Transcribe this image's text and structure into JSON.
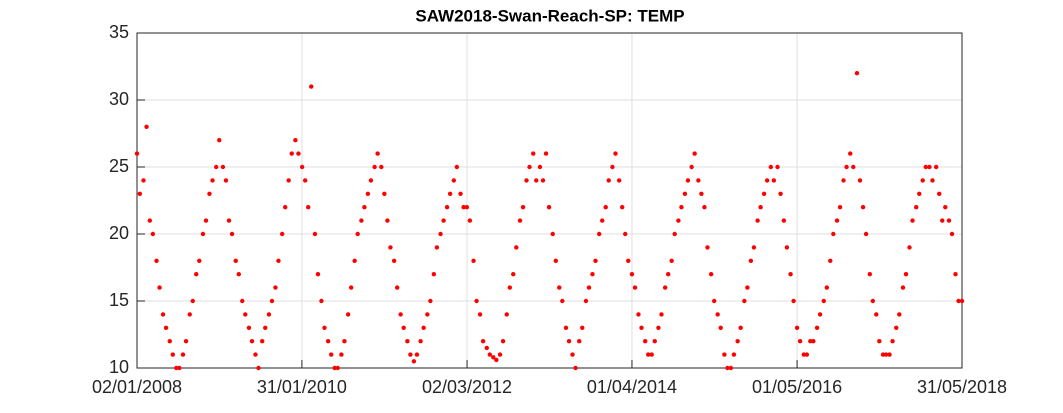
{
  "chart_data": {
    "type": "scatter",
    "title": "SAW2018-Swan-Reach-SP: TEMP",
    "series": [
      {
        "color": "#ff0000",
        "x": [
          "02/01/2008",
          "15/01/2008",
          "01/02/2008",
          "15/02/2008",
          "01/03/2008",
          "15/03/2008",
          "01/04/2008",
          "15/04/2008",
          "01/05/2008",
          "15/05/2008",
          "01/06/2008",
          "15/06/2008",
          "01/07/2008",
          "15/07/2008",
          "01/08/2008",
          "15/08/2008",
          "01/09/2008",
          "15/09/2008",
          "01/10/2008",
          "15/10/2008",
          "01/11/2008",
          "15/11/2008",
          "01/12/2008",
          "15/12/2008",
          "01/01/2009",
          "15/01/2009",
          "01/02/2009",
          "15/02/2009",
          "01/03/2009",
          "15/03/2009",
          "01/04/2009",
          "15/04/2009",
          "01/05/2009",
          "15/05/2009",
          "01/06/2009",
          "15/06/2009",
          "01/07/2009",
          "15/07/2009",
          "01/08/2009",
          "15/08/2009",
          "01/09/2009",
          "15/09/2009",
          "01/10/2009",
          "15/10/2009",
          "01/11/2009",
          "15/11/2009",
          "01/12/2009",
          "15/12/2009",
          "01/01/2010",
          "15/01/2010",
          "01/02/2010",
          "15/02/2010",
          "01/03/2010",
          "15/03/2010",
          "01/04/2010",
          "15/04/2010",
          "01/05/2010",
          "15/05/2010",
          "01/06/2010",
          "15/06/2010",
          "01/07/2010",
          "15/07/2010",
          "01/08/2010",
          "15/08/2010",
          "01/09/2010",
          "15/09/2010",
          "01/10/2010",
          "15/10/2010",
          "01/11/2010",
          "15/11/2010",
          "01/12/2010",
          "15/12/2010",
          "01/01/2011",
          "15/01/2011",
          "01/02/2011",
          "15/02/2011",
          "01/03/2011",
          "15/03/2011",
          "01/04/2011",
          "15/04/2011",
          "01/05/2011",
          "15/05/2011",
          "01/06/2011",
          "15/06/2011",
          "01/07/2011",
          "15/07/2011",
          "01/08/2011",
          "15/08/2011",
          "01/09/2011",
          "15/09/2011",
          "01/10/2011",
          "15/10/2011",
          "01/11/2011",
          "15/11/2011",
          "01/12/2011",
          "15/12/2011",
          "01/01/2012",
          "15/01/2012",
          "01/02/2012",
          "15/02/2012",
          "01/03/2012",
          "15/03/2012",
          "01/04/2012",
          "15/04/2012",
          "01/05/2012",
          "15/05/2012",
          "01/06/2012",
          "15/06/2012",
          "01/07/2012",
          "15/07/2012",
          "01/08/2012",
          "15/08/2012",
          "01/09/2012",
          "15/09/2012",
          "01/10/2012",
          "15/10/2012",
          "01/11/2012",
          "15/11/2012",
          "01/12/2012",
          "15/12/2012",
          "01/01/2013",
          "15/01/2013",
          "01/02/2013",
          "15/02/2013",
          "01/03/2013",
          "15/03/2013",
          "01/04/2013",
          "15/04/2013",
          "01/05/2013",
          "15/05/2013",
          "01/06/2013",
          "15/06/2013",
          "01/07/2013",
          "15/07/2013",
          "01/08/2013",
          "15/08/2013",
          "01/09/2013",
          "15/09/2013",
          "01/10/2013",
          "15/10/2013",
          "01/11/2013",
          "15/11/2013",
          "01/12/2013",
          "15/12/2013",
          "01/01/2014",
          "15/01/2014",
          "01/02/2014",
          "15/02/2014",
          "01/03/2014",
          "15/03/2014",
          "01/04/2014",
          "15/04/2014",
          "01/05/2014",
          "15/05/2014",
          "01/06/2014",
          "15/06/2014",
          "01/07/2014",
          "15/07/2014",
          "01/08/2014",
          "15/08/2014",
          "01/09/2014",
          "15/09/2014",
          "01/10/2014",
          "15/10/2014",
          "01/11/2014",
          "15/11/2014",
          "01/12/2014",
          "15/12/2014",
          "01/01/2015",
          "15/01/2015",
          "01/02/2015",
          "15/02/2015",
          "01/03/2015",
          "15/03/2015",
          "01/04/2015",
          "15/04/2015",
          "01/05/2015",
          "15/05/2015",
          "01/06/2015",
          "15/06/2015",
          "01/07/2015",
          "15/07/2015",
          "01/08/2015",
          "15/08/2015",
          "01/09/2015",
          "15/09/2015",
          "01/10/2015",
          "15/10/2015",
          "01/11/2015",
          "15/11/2015",
          "01/12/2015",
          "15/12/2015",
          "01/01/2016",
          "15/01/2016",
          "01/02/2016",
          "15/02/2016",
          "01/03/2016",
          "15/03/2016",
          "01/04/2016",
          "15/04/2016",
          "01/05/2016",
          "15/05/2016",
          "01/06/2016",
          "15/06/2016",
          "01/07/2016",
          "15/07/2016",
          "01/08/2016",
          "15/08/2016",
          "01/09/2016",
          "15/09/2016",
          "01/10/2016",
          "15/10/2016",
          "01/11/2016",
          "15/11/2016",
          "01/12/2016",
          "15/12/2016",
          "01/01/2017",
          "15/01/2017",
          "01/02/2017",
          "15/02/2017",
          "01/03/2017",
          "15/03/2017",
          "01/04/2017",
          "15/04/2017",
          "01/05/2017",
          "15/05/2017",
          "01/06/2017",
          "15/06/2017",
          "01/07/2017",
          "15/07/2017",
          "01/08/2017",
          "15/08/2017",
          "01/09/2017",
          "15/09/2017",
          "01/10/2017",
          "15/10/2017",
          "01/11/2017",
          "15/11/2017",
          "01/12/2017",
          "15/12/2017",
          "01/01/2018",
          "15/01/2018",
          "01/02/2018",
          "15/02/2018",
          "01/03/2018",
          "15/03/2018",
          "01/04/2018",
          "15/04/2018",
          "01/05/2018",
          "15/05/2018",
          "31/05/2018"
        ],
        "values": [
          26,
          23,
          24,
          28,
          21,
          20,
          18,
          16,
          14,
          13,
          12,
          11,
          10,
          10,
          11,
          12,
          14,
          15,
          17,
          18,
          20,
          21,
          23,
          24,
          25,
          27,
          25,
          24,
          21,
          20,
          18,
          17,
          15,
          14,
          13,
          12,
          11,
          10,
          12,
          13,
          14,
          15,
          16,
          18,
          20,
          22,
          24,
          26,
          27,
          26,
          25,
          24,
          22,
          31,
          20,
          17,
          15,
          13,
          12,
          11,
          10,
          10,
          11,
          12,
          14,
          16,
          18,
          20,
          21,
          22,
          23,
          24,
          25,
          26,
          25,
          23,
          21,
          19,
          18,
          16,
          14,
          13,
          12,
          11,
          10.5,
          11,
          12,
          13,
          14,
          15,
          17,
          19,
          20,
          21,
          22,
          23,
          24,
          25,
          23,
          22,
          22,
          21,
          18,
          15,
          14,
          12,
          11.5,
          11,
          10.8,
          10.6,
          11,
          12,
          14,
          16,
          17,
          19,
          21,
          22,
          24,
          25,
          26,
          24,
          25,
          24,
          26,
          22,
          20,
          18,
          16,
          15,
          13,
          12,
          11,
          10,
          12,
          13,
          15,
          16,
          17,
          18,
          20,
          21,
          22,
          24,
          25,
          26,
          24,
          22,
          20,
          18,
          17,
          16,
          14,
          13,
          12,
          11,
          11,
          12,
          13,
          14,
          16,
          17,
          18,
          20,
          21,
          22,
          23,
          24,
          25,
          26,
          24,
          23,
          22,
          19,
          17,
          15,
          14,
          13,
          11,
          10,
          10,
          11,
          12,
          13,
          15,
          16,
          18,
          19,
          21,
          22,
          23,
          24,
          25,
          24,
          25,
          23,
          21,
          19,
          17,
          15,
          13,
          12,
          11,
          11,
          12,
          12,
          13,
          14,
          15,
          16,
          18,
          20,
          21,
          22,
          24,
          25,
          26,
          25,
          32,
          24,
          22,
          20,
          17,
          15,
          14,
          12,
          11,
          11,
          11,
          12,
          13,
          14,
          16,
          17,
          19,
          21,
          22,
          23,
          24,
          25,
          25,
          24,
          25,
          23,
          21,
          22,
          21,
          20,
          17,
          15,
          15
        ]
      }
    ],
    "xlim": [
      "02/01/2008",
      "31/05/2018"
    ],
    "xticks": [
      "02/01/2008",
      "31/01/2010",
      "02/03/2012",
      "01/04/2014",
      "01/05/2016",
      "31/05/2018"
    ],
    "ylim": [
      10,
      35
    ],
    "yticks": [
      10,
      15,
      20,
      25,
      30,
      35
    ],
    "grid": true
  }
}
